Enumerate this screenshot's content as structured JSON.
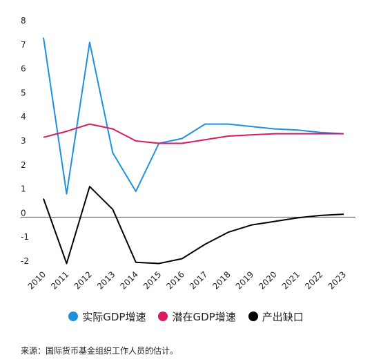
{
  "chart_data": {
    "type": "line",
    "title": "",
    "xlabel": "",
    "ylabel": "",
    "categories": [
      "2010",
      "2011",
      "2012",
      "2013",
      "2014",
      "2015",
      "2016",
      "2017",
      "2018",
      "2019",
      "2020",
      "2021",
      "2022",
      "2023"
    ],
    "ylim": [
      -2,
      8
    ],
    "yticks": [
      8,
      7,
      6,
      5,
      4,
      3,
      2,
      1,
      0,
      -1,
      -2
    ],
    "grid": false,
    "legend_position": "bottom",
    "series": [
      {
        "name": "实际GDP增速",
        "color": "#1f8fe0",
        "values": [
          7.3,
          0.8,
          7.1,
          2.5,
          0.9,
          2.9,
          3.1,
          3.7,
          3.7,
          3.6,
          3.5,
          3.45,
          3.35,
          3.3
        ]
      },
      {
        "name": "潜在GDP增速",
        "color": "#d81b60",
        "values": [
          3.15,
          3.4,
          3.7,
          3.5,
          3.0,
          2.9,
          2.9,
          3.05,
          3.2,
          3.25,
          3.3,
          3.3,
          3.3,
          3.3
        ]
      },
      {
        "name": "产出缺口",
        "color": "#000000",
        "values": [
          0.6,
          -2.1,
          1.1,
          0.15,
          -2.05,
          -2.1,
          -1.9,
          -1.3,
          -0.8,
          -0.5,
          -0.35,
          -0.2,
          -0.1,
          -0.05
        ]
      }
    ]
  },
  "source_note": "来源：国际货币基金组织工作人员的估计。"
}
